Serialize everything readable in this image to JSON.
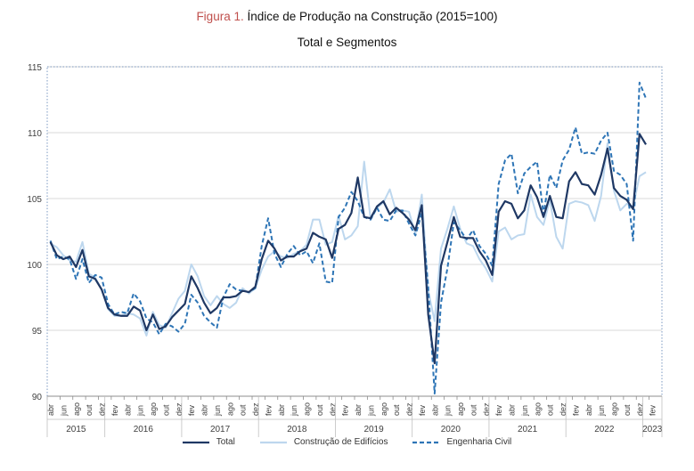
{
  "title": {
    "prefix": "Figura 1.",
    "main": "Índice de Produção na Construção (2015=100)"
  },
  "subtitle": "Total e Segmentos",
  "chart_data": {
    "type": "line",
    "title": "Figura 1. Índice de Produção na Construção (2015=100)",
    "subtitle": "Total e Segmentos",
    "ylim": [
      90,
      115
    ],
    "yticks": [
      90,
      95,
      100,
      105,
      110,
      115
    ],
    "grid": "horizontal",
    "legend": "bottom",
    "month_ticks": [
      "abr",
      "jun",
      "ago",
      "out",
      "dez",
      "fev",
      "abr",
      "jun",
      "ago",
      "out",
      "dez",
      "fev",
      "abr",
      "jun",
      "ago",
      "out",
      "dez",
      "fev",
      "abr",
      "jun",
      "ago",
      "out",
      "dez",
      "fev",
      "abr",
      "jun",
      "ago",
      "out",
      "dez",
      "fev",
      "abr",
      "jun",
      "ago",
      "out",
      "dez",
      "fev",
      "abr",
      "jun",
      "ago",
      "out",
      "dez",
      "fev",
      "abr",
      "jun",
      "ago",
      "out",
      "dez",
      "fev"
    ],
    "years": [
      "2015",
      "2016",
      "2017",
      "2018",
      "2019",
      "2020",
      "2021",
      "2022",
      "2023"
    ],
    "x_start": "2015-04",
    "x_end": "2023-03",
    "series": [
      {
        "name": "Total",
        "color": "#1f3864",
        "style": "solid",
        "values": [
          101.7,
          100.7,
          100.4,
          100.6,
          99.8,
          101.1,
          99.1,
          98.9,
          98.1,
          96.7,
          96.2,
          96.1,
          96.1,
          96.8,
          96.5,
          95.0,
          96.2,
          95.1,
          95.3,
          96.0,
          96.5,
          97.0,
          99.1,
          98.2,
          97.1,
          96.3,
          96.7,
          97.5,
          97.5,
          97.6,
          98.0,
          97.9,
          98.3,
          100.4,
          101.8,
          101.2,
          100.3,
          100.6,
          100.6,
          101.0,
          101.2,
          102.4,
          102.1,
          101.9,
          100.5,
          102.7,
          103.0,
          103.9,
          106.6,
          103.6,
          103.5,
          104.4,
          104.8,
          103.8,
          104.3,
          103.9,
          103.4,
          102.6,
          104.5,
          96.2,
          92.5,
          99.9,
          101.7,
          103.6,
          102.1,
          102.0,
          102.0,
          101.0,
          100.3,
          99.2,
          104.0,
          104.8,
          104.6,
          103.5,
          104.1,
          106.0,
          105.1,
          103.6,
          105.2,
          103.6,
          103.5,
          106.3,
          107.0,
          106.1,
          106.0,
          105.3,
          106.8,
          108.8,
          105.8,
          105.2,
          104.9,
          104.2,
          109.9,
          109.1
        ]
      },
      {
        "name": "Construção de Edifícios",
        "color": "#bdd7ee",
        "style": "solid",
        "values": [
          101.6,
          101.3,
          100.7,
          100.3,
          100.2,
          101.7,
          99.3,
          99.0,
          98.1,
          96.6,
          96.1,
          96.1,
          96.3,
          96.2,
          95.9,
          94.6,
          96.4,
          95.4,
          95.2,
          96.3,
          97.4,
          98.0,
          100.0,
          99.1,
          97.6,
          96.9,
          97.6,
          97.0,
          96.7,
          97.1,
          98.2,
          97.8,
          98.2,
          99.6,
          100.6,
          101.0,
          100.6,
          100.5,
          100.8,
          101.0,
          101.5,
          103.4,
          103.4,
          101.5,
          101.7,
          103.7,
          101.9,
          102.2,
          102.9,
          107.8,
          103.4,
          104.3,
          104.7,
          105.7,
          104.0,
          104.1,
          104.0,
          102.3,
          105.3,
          98.0,
          95.7,
          101.2,
          102.7,
          104.4,
          102.7,
          101.6,
          101.4,
          100.4,
          99.7,
          98.7,
          102.5,
          102.8,
          101.9,
          102.2,
          102.3,
          105.3,
          103.6,
          103.0,
          104.9,
          102.1,
          101.2,
          104.6,
          104.8,
          104.7,
          104.5,
          103.3,
          105.2,
          109.2,
          105.6,
          104.1,
          104.6,
          104.4,
          106.7,
          107.0
        ]
      },
      {
        "name": "Engenharia Civil",
        "color": "#2e75b6",
        "style": "dashed",
        "values": [
          101.8,
          100.4,
          100.6,
          100.4,
          98.9,
          100.4,
          98.6,
          99.2,
          99.0,
          97.0,
          96.2,
          96.4,
          96.3,
          97.8,
          97.2,
          95.9,
          95.6,
          94.7,
          95.5,
          95.3,
          94.9,
          95.5,
          97.7,
          97.1,
          96.1,
          95.6,
          95.2,
          97.5,
          98.5,
          98.1,
          98.0,
          97.9,
          98.2,
          101.4,
          103.5,
          100.8,
          99.8,
          100.8,
          101.4,
          100.7,
          101.0,
          100.1,
          101.6,
          98.7,
          98.6,
          103.6,
          104.3,
          105.5,
          104.8,
          103.6,
          103.4,
          104.3,
          103.4,
          103.3,
          104.1,
          104.1,
          103.1,
          102.2,
          103.9,
          98.3,
          90.2,
          97.1,
          99.7,
          103.2,
          102.6,
          101.9,
          102.6,
          101.4,
          100.8,
          99.9,
          106.1,
          107.9,
          108.4,
          105.4,
          106.9,
          107.4,
          107.8,
          103.8,
          106.8,
          105.8,
          107.9,
          108.7,
          110.4,
          108.4,
          108.5,
          108.4,
          109.4,
          110.0,
          107.1,
          106.8,
          106.1,
          101.8,
          113.8,
          112.6
        ]
      }
    ]
  }
}
